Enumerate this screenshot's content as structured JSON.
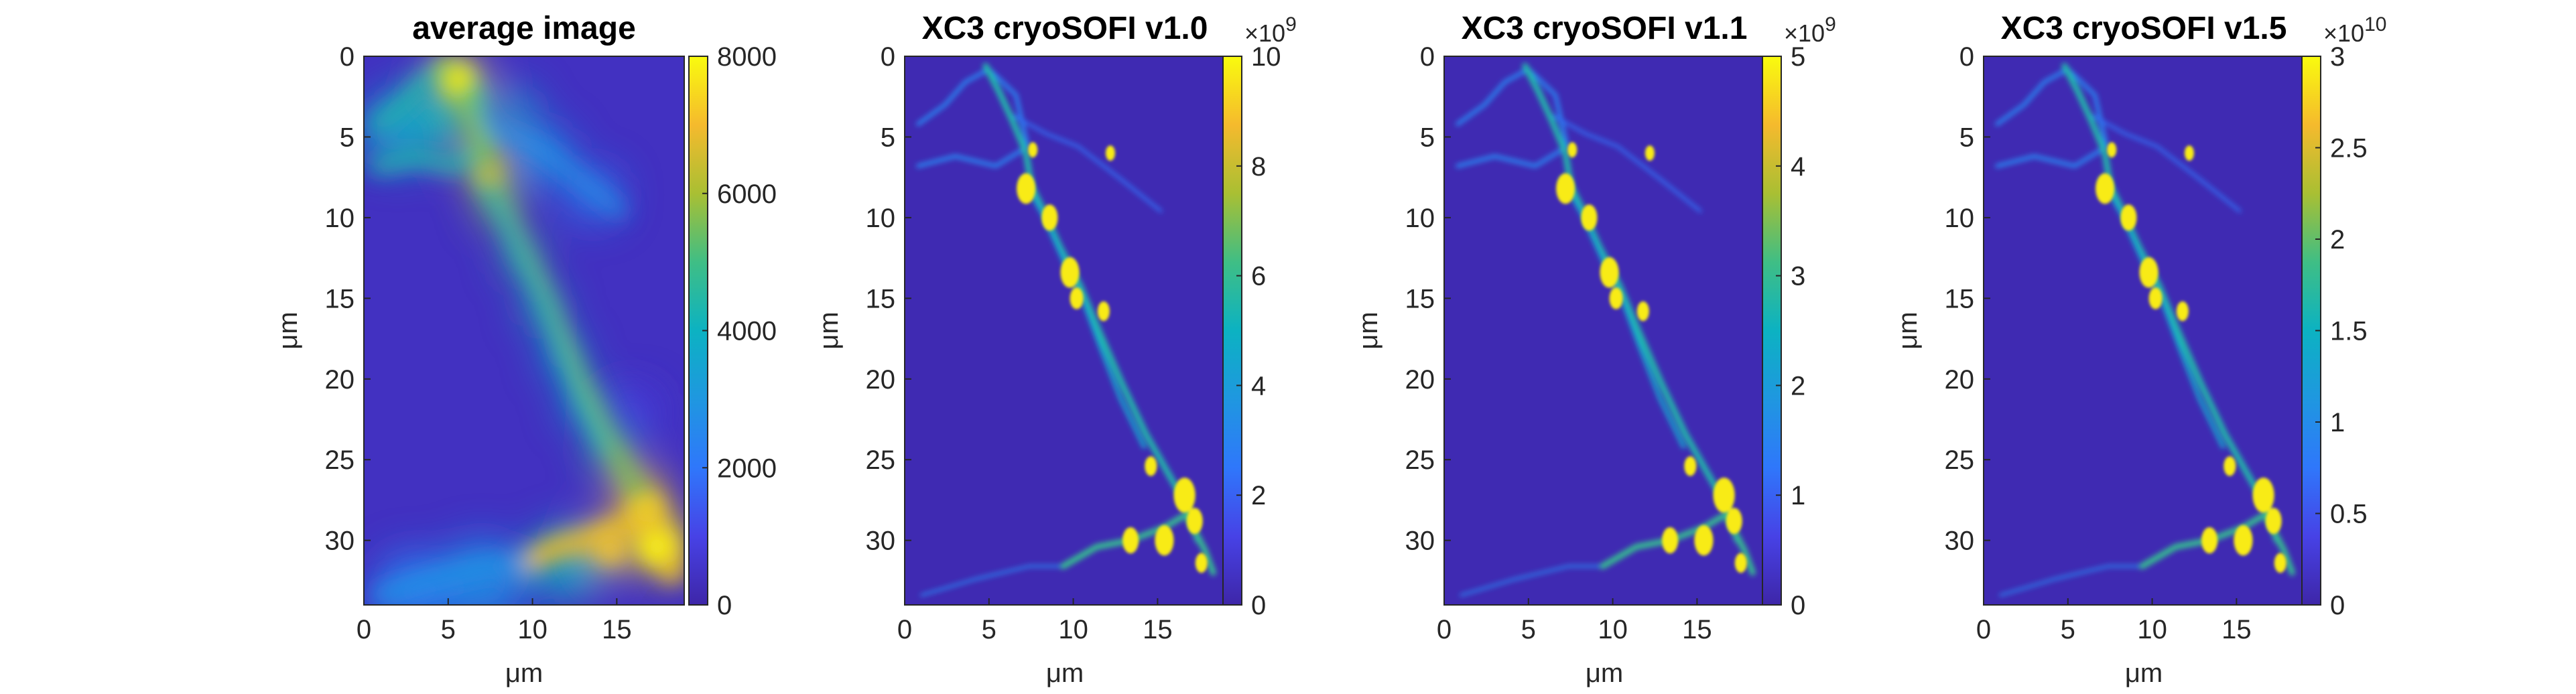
{
  "chart_data": [
    {
      "type": "heatmap",
      "title": "average image",
      "xlabel": "μm",
      "ylabel": "μm",
      "xlim": [
        0,
        19
      ],
      "ylim": [
        0,
        34
      ],
      "y_direction": "reversed",
      "xticks": [
        0,
        5,
        10,
        15
      ],
      "yticks": [
        0,
        5,
        10,
        15,
        20,
        25,
        30
      ],
      "xtick_labels": [
        "0",
        "5",
        "10",
        "15"
      ],
      "ytick_labels": [
        "0",
        "5",
        "10",
        "15",
        "20",
        "25",
        "30"
      ],
      "colormap": "parula",
      "background_level": 0.05,
      "colorbar": {
        "clim": [
          0,
          8000
        ],
        "ticks": [
          0,
          2000,
          4000,
          6000,
          8000
        ],
        "tick_labels": [
          "0",
          "2000",
          "4000",
          "6000",
          "8000"
        ],
        "exponent": ""
      }
    },
    {
      "type": "heatmap",
      "title": "XC3 cryoSOFI v1.0",
      "xlabel": "μm",
      "ylabel": "μm",
      "xlim": [
        0,
        19
      ],
      "ylim": [
        0,
        34
      ],
      "y_direction": "reversed",
      "xticks": [
        0,
        5,
        10,
        15
      ],
      "yticks": [
        0,
        5,
        10,
        15,
        20,
        25,
        30
      ],
      "xtick_labels": [
        "0",
        "5",
        "10",
        "15"
      ],
      "ytick_labels": [
        "0",
        "5",
        "10",
        "15",
        "20",
        "25",
        "30"
      ],
      "colormap": "parula",
      "background_level": 0.02,
      "colorbar": {
        "clim": [
          0,
          10
        ],
        "ticks": [
          0,
          2,
          4,
          6,
          8,
          10
        ],
        "tick_labels": [
          "0",
          "2",
          "4",
          "6",
          "8",
          "10"
        ],
        "exponent": "×10",
        "exponent_power": "9"
      }
    },
    {
      "type": "heatmap",
      "title": "XC3 cryoSOFI v1.1",
      "xlabel": "μm",
      "ylabel": "μm",
      "xlim": [
        0,
        19
      ],
      "ylim": [
        0,
        34
      ],
      "y_direction": "reversed",
      "xticks": [
        0,
        5,
        10,
        15
      ],
      "yticks": [
        0,
        5,
        10,
        15,
        20,
        25,
        30
      ],
      "xtick_labels": [
        "0",
        "5",
        "10",
        "15"
      ],
      "ytick_labels": [
        "0",
        "5",
        "10",
        "15",
        "20",
        "25",
        "30"
      ],
      "colormap": "parula",
      "background_level": 0.02,
      "colorbar": {
        "clim": [
          0,
          5
        ],
        "ticks": [
          0,
          1,
          2,
          3,
          4,
          5
        ],
        "tick_labels": [
          "0",
          "1",
          "2",
          "3",
          "4",
          "5"
        ],
        "exponent": "×10",
        "exponent_power": "9"
      }
    },
    {
      "type": "heatmap",
      "title": "XC3 cryoSOFI v1.5",
      "xlabel": "μm",
      "ylabel": "μm",
      "xlim": [
        0,
        19
      ],
      "ylim": [
        0,
        34
      ],
      "y_direction": "reversed",
      "xticks": [
        0,
        5,
        10,
        15
      ],
      "yticks": [
        0,
        5,
        10,
        15,
        20,
        25,
        30
      ],
      "xtick_labels": [
        "0",
        "5",
        "10",
        "15"
      ],
      "ytick_labels": [
        "0",
        "5",
        "10",
        "15",
        "20",
        "25",
        "30"
      ],
      "colormap": "parula",
      "background_level": 0.02,
      "colorbar": {
        "clim": [
          0,
          3
        ],
        "ticks": [
          0,
          0.5,
          1,
          1.5,
          2,
          2.5,
          3
        ],
        "tick_labels": [
          "0",
          "0.5",
          "1",
          "1.5",
          "2",
          "2.5",
          "3"
        ],
        "exponent": "×10",
        "exponent_power": "10"
      }
    }
  ]
}
